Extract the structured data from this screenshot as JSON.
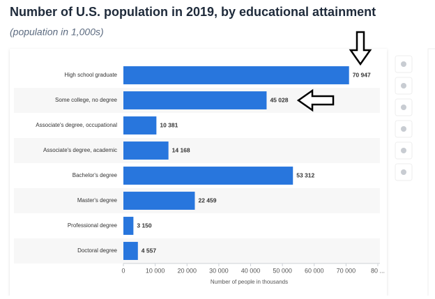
{
  "chart_data": {
    "type": "barh",
    "title": "Number of U.S. population in 2019, by educational attainment",
    "subtitle": "(population in 1,000s)",
    "x_label": "Number of people in thousands",
    "categories": [
      "High school graduate",
      "Some college, no degree",
      "Associate's degree, occupational",
      "Associate's degree, academic",
      "Bachelor's degree",
      "Master's degree",
      "Professional degree",
      "Doctoral degree"
    ],
    "values": [
      70947,
      45028,
      10381,
      14168,
      53312,
      22459,
      3150,
      4557
    ],
    "value_labels": [
      "70 947",
      "45 028",
      "10 381",
      "14 168",
      "53 312",
      "22 459",
      "3 150",
      "4 557"
    ],
    "color": "#2876dd",
    "xlim": [
      0,
      80000
    ],
    "xticks": [
      0,
      {
        "value": 10000,
        "label": "10 000"
      },
      {
        "value": 20000,
        "label": "20 000"
      },
      {
        "value": 30000,
        "label": "30 000"
      },
      {
        "value": 40000,
        "label": "40 000"
      },
      {
        "value": 50000,
        "label": "50 000"
      },
      {
        "value": 60000,
        "label": "60 000"
      },
      {
        "value": 70000,
        "label": "70 000"
      },
      {
        "value": 80000,
        "label": "80 ..."
      }
    ]
  }
}
